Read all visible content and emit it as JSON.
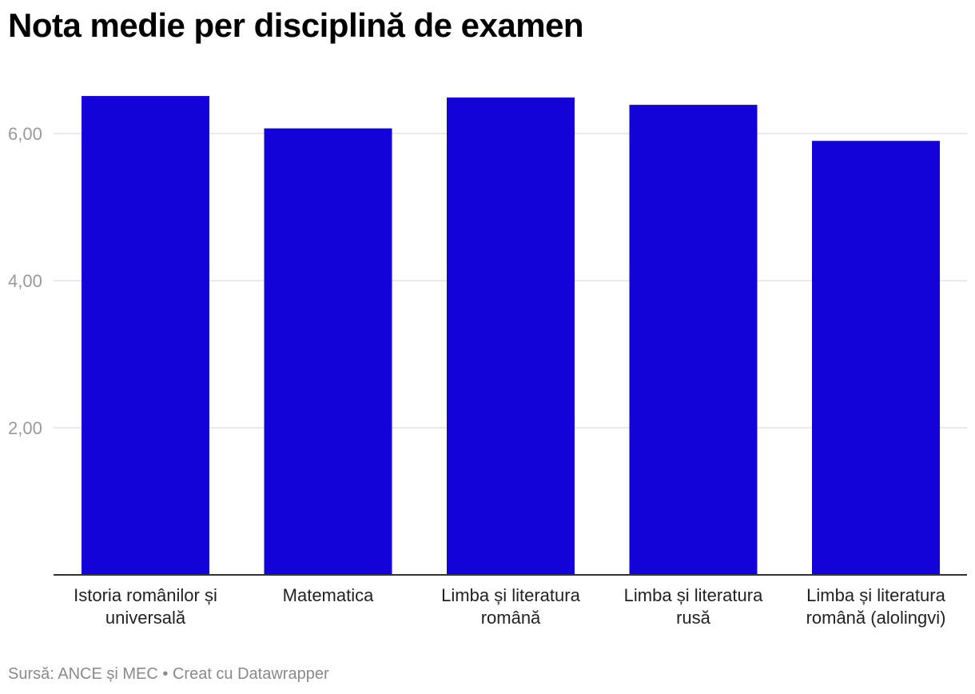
{
  "title": "Nota medie per disciplină de examen",
  "footer": {
    "source": "Sursă: ANCE și MEC",
    "separator": "•",
    "credit": "Creat cu Datawrapper"
  },
  "colors": {
    "bar": "#1303d8",
    "grid": "#e2e2e2",
    "axis": "#333333"
  },
  "chart_data": {
    "type": "bar",
    "categories": [
      [
        "Istoria românilor și",
        "universală"
      ],
      [
        "Matematica"
      ],
      [
        "Limba și literatura",
        "română"
      ],
      [
        "Limba și literatura",
        "rusă"
      ],
      [
        "Limba și literatura",
        "română (alolingvi)"
      ]
    ],
    "values": [
      6.51,
      6.07,
      6.49,
      6.39,
      5.9
    ],
    "yticks": [
      {
        "value": 2,
        "label": "2,00"
      },
      {
        "value": 4,
        "label": "4,00"
      },
      {
        "value": 6,
        "label": "6,00"
      }
    ],
    "ylim": [
      0,
      7.2
    ],
    "grid": true
  }
}
